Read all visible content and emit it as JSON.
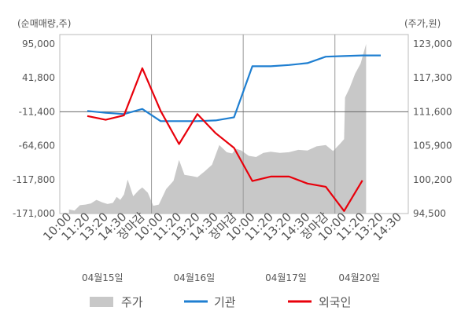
{
  "chart_data": {
    "type": "line",
    "left_unit": "(순매매량,주)",
    "right_unit": "(주가,원)",
    "left_ticks": [
      "95,000",
      "41,800",
      "-11,400",
      "-64,600",
      "-117,800",
      "-171,000"
    ],
    "left_values": [
      95000,
      41800,
      -11400,
      -64600,
      -117800,
      -171000
    ],
    "right_ticks": [
      "123,000",
      "117,300",
      "111,600",
      "105,900",
      "100,200",
      "94,500"
    ],
    "right_values": [
      123000,
      117300,
      111600,
      105900,
      100200,
      94500
    ],
    "ylim_left": [
      -171000,
      95000
    ],
    "ylim_right": [
      94500,
      123000
    ],
    "x_labels": [
      "10:00",
      "11:20",
      "13:20",
      "14:30",
      "장마감",
      "10:00",
      "11:20",
      "13:20",
      "14:30",
      "장마감",
      "10:00",
      "11:20",
      "13:20",
      "14:30",
      "장마감",
      "10:00",
      "11:20",
      "13:20",
      "14:30"
    ],
    "close_label": "장마감",
    "date_labels": [
      "04월15일",
      "04월16일",
      "04월17일",
      "04월20일"
    ],
    "legend": [
      {
        "label": "주가",
        "color": "#c8c8c8"
      },
      {
        "label": "기관",
        "color": "#1f7fd1"
      },
      {
        "label": "외국인",
        "color": "#e8000b"
      }
    ],
    "series": [
      {
        "name": "기관",
        "axis": "left",
        "color": "#1f7fd1",
        "x": [
          1,
          2,
          3,
          4,
          5,
          6,
          7,
          8,
          9,
          10,
          11,
          12,
          13,
          14,
          15,
          16,
          17,
          18
        ],
        "values": [
          -10000,
          -13000,
          -15000,
          -7000,
          -26000,
          -26000,
          -26000,
          -25000,
          -20000,
          60000,
          60000,
          62000,
          65000,
          75000,
          76000,
          77000,
          77000,
          null
        ]
      },
      {
        "name": "외국인",
        "axis": "left",
        "color": "#e8000b",
        "x": [
          1,
          2,
          3,
          4,
          5,
          6,
          7,
          8,
          9,
          10,
          11,
          12,
          13,
          14,
          15,
          16,
          17,
          18
        ],
        "values": [
          -18000,
          -24000,
          -17000,
          57000,
          -10000,
          -62000,
          -15000,
          -45000,
          -68000,
          -120000,
          -113000,
          -113000,
          -124000,
          -129000,
          -167000,
          -119000,
          null,
          null
        ]
      }
    ],
    "price": {
      "name": "주가",
      "axis": "right",
      "color": "#c8c8c8",
      "x": [
        0,
        0.3,
        0.6,
        0.9,
        1.2,
        1.5,
        1.8,
        2.1,
        2.4,
        2.6,
        2.8,
        3.0,
        3.2,
        3.5,
        3.8,
        4.0,
        4.3,
        4.6,
        4.9,
        5.3,
        5.7,
        6.0,
        6.3,
        6.7,
        7.0,
        7.4,
        7.8,
        8.2,
        8.6,
        8.9,
        9.1,
        9.4,
        9.8,
        10.2,
        10.6,
        11.0,
        11.5,
        12.0,
        12.5,
        13.0,
        13.5,
        14.0,
        14.4,
        14.8,
        15.0,
        15.05,
        15.3,
        15.6,
        15.9,
        16.2
      ],
      "values": [
        95200,
        95000,
        95900,
        96000,
        96200,
        96800,
        96400,
        96100,
        96300,
        97300,
        96800,
        97700,
        100200,
        97400,
        98400,
        98900,
        98000,
        95800,
        96000,
        98600,
        100000,
        103500,
        101000,
        100800,
        100600,
        101600,
        102700,
        106000,
        104800,
        104600,
        105400,
        105100,
        104200,
        104000,
        104700,
        104900,
        104700,
        104800,
        105200,
        105100,
        105800,
        106000,
        105000,
        106300,
        107000,
        114000,
        115600,
        118000,
        119700,
        123000
      ]
    },
    "x_range": [
      -0.5,
      18.5
    ],
    "vlines_after_close": [
      4.5,
      9.5,
      14.5
    ],
    "hline_left_value": -11400,
    "grid": "off",
    "legend_position": "bottom"
  }
}
